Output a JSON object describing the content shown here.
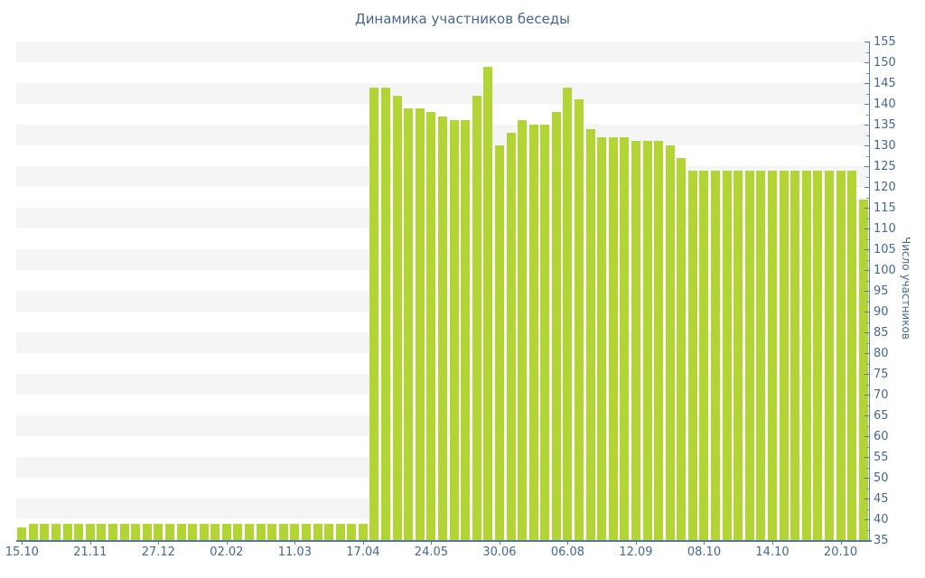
{
  "page": {
    "background": "#ffffff"
  },
  "colors": {
    "bar": "#b2d535",
    "band": "#f5f5f5",
    "axis_line": "#5b79a8",
    "label_text": "#45688e",
    "title_text": "#45688e"
  },
  "chart_data": {
    "type": "bar",
    "title": "Динамика участников беседы",
    "xlabel": "",
    "ylabel": "Число участников",
    "ylim": [
      35,
      155
    ],
    "ytick_step": 5,
    "ytick_minor_step": 2.5,
    "grid": "alternating-horizontal-bands",
    "legend": false,
    "y_axis_side": "right",
    "n_points": 75,
    "y_tick_labels": [
      "35",
      "40",
      "45",
      "50",
      "55",
      "60",
      "65",
      "70",
      "75",
      "80",
      "85",
      "90",
      "95",
      "100",
      "105",
      "110",
      "115",
      "120",
      "125",
      "130",
      "135",
      "140",
      "145",
      "150",
      "155"
    ],
    "x_tick_labels": [
      {
        "index": 0,
        "label": "15.10"
      },
      {
        "index": 6,
        "label": "21.11"
      },
      {
        "index": 12,
        "label": "27.12"
      },
      {
        "index": 18,
        "label": "02.02"
      },
      {
        "index": 24,
        "label": "11.03"
      },
      {
        "index": 30,
        "label": "17.04"
      },
      {
        "index": 36,
        "label": "24.05"
      },
      {
        "index": 42,
        "label": "30.06"
      },
      {
        "index": 48,
        "label": "06.08"
      },
      {
        "index": 54,
        "label": "12.09"
      },
      {
        "index": 60,
        "label": "08.10"
      },
      {
        "index": 66,
        "label": "14.10"
      },
      {
        "index": 72,
        "label": "20.10"
      }
    ],
    "values": [
      38,
      39,
      39,
      39,
      39,
      39,
      39,
      39,
      39,
      39,
      39,
      39,
      39,
      39,
      39,
      39,
      39,
      39,
      39,
      39,
      39,
      39,
      39,
      39,
      39,
      39,
      39,
      39,
      39,
      39,
      39,
      144,
      144,
      142,
      139,
      139,
      138,
      137,
      136,
      136,
      142,
      149,
      130,
      133,
      136,
      135,
      135,
      138,
      144,
      141,
      134,
      132,
      132,
      132,
      131,
      131,
      131,
      130,
      127,
      124,
      124,
      124,
      124,
      124,
      124,
      124,
      124,
      124,
      124,
      124,
      124,
      124,
      124,
      124,
      117
    ]
  }
}
